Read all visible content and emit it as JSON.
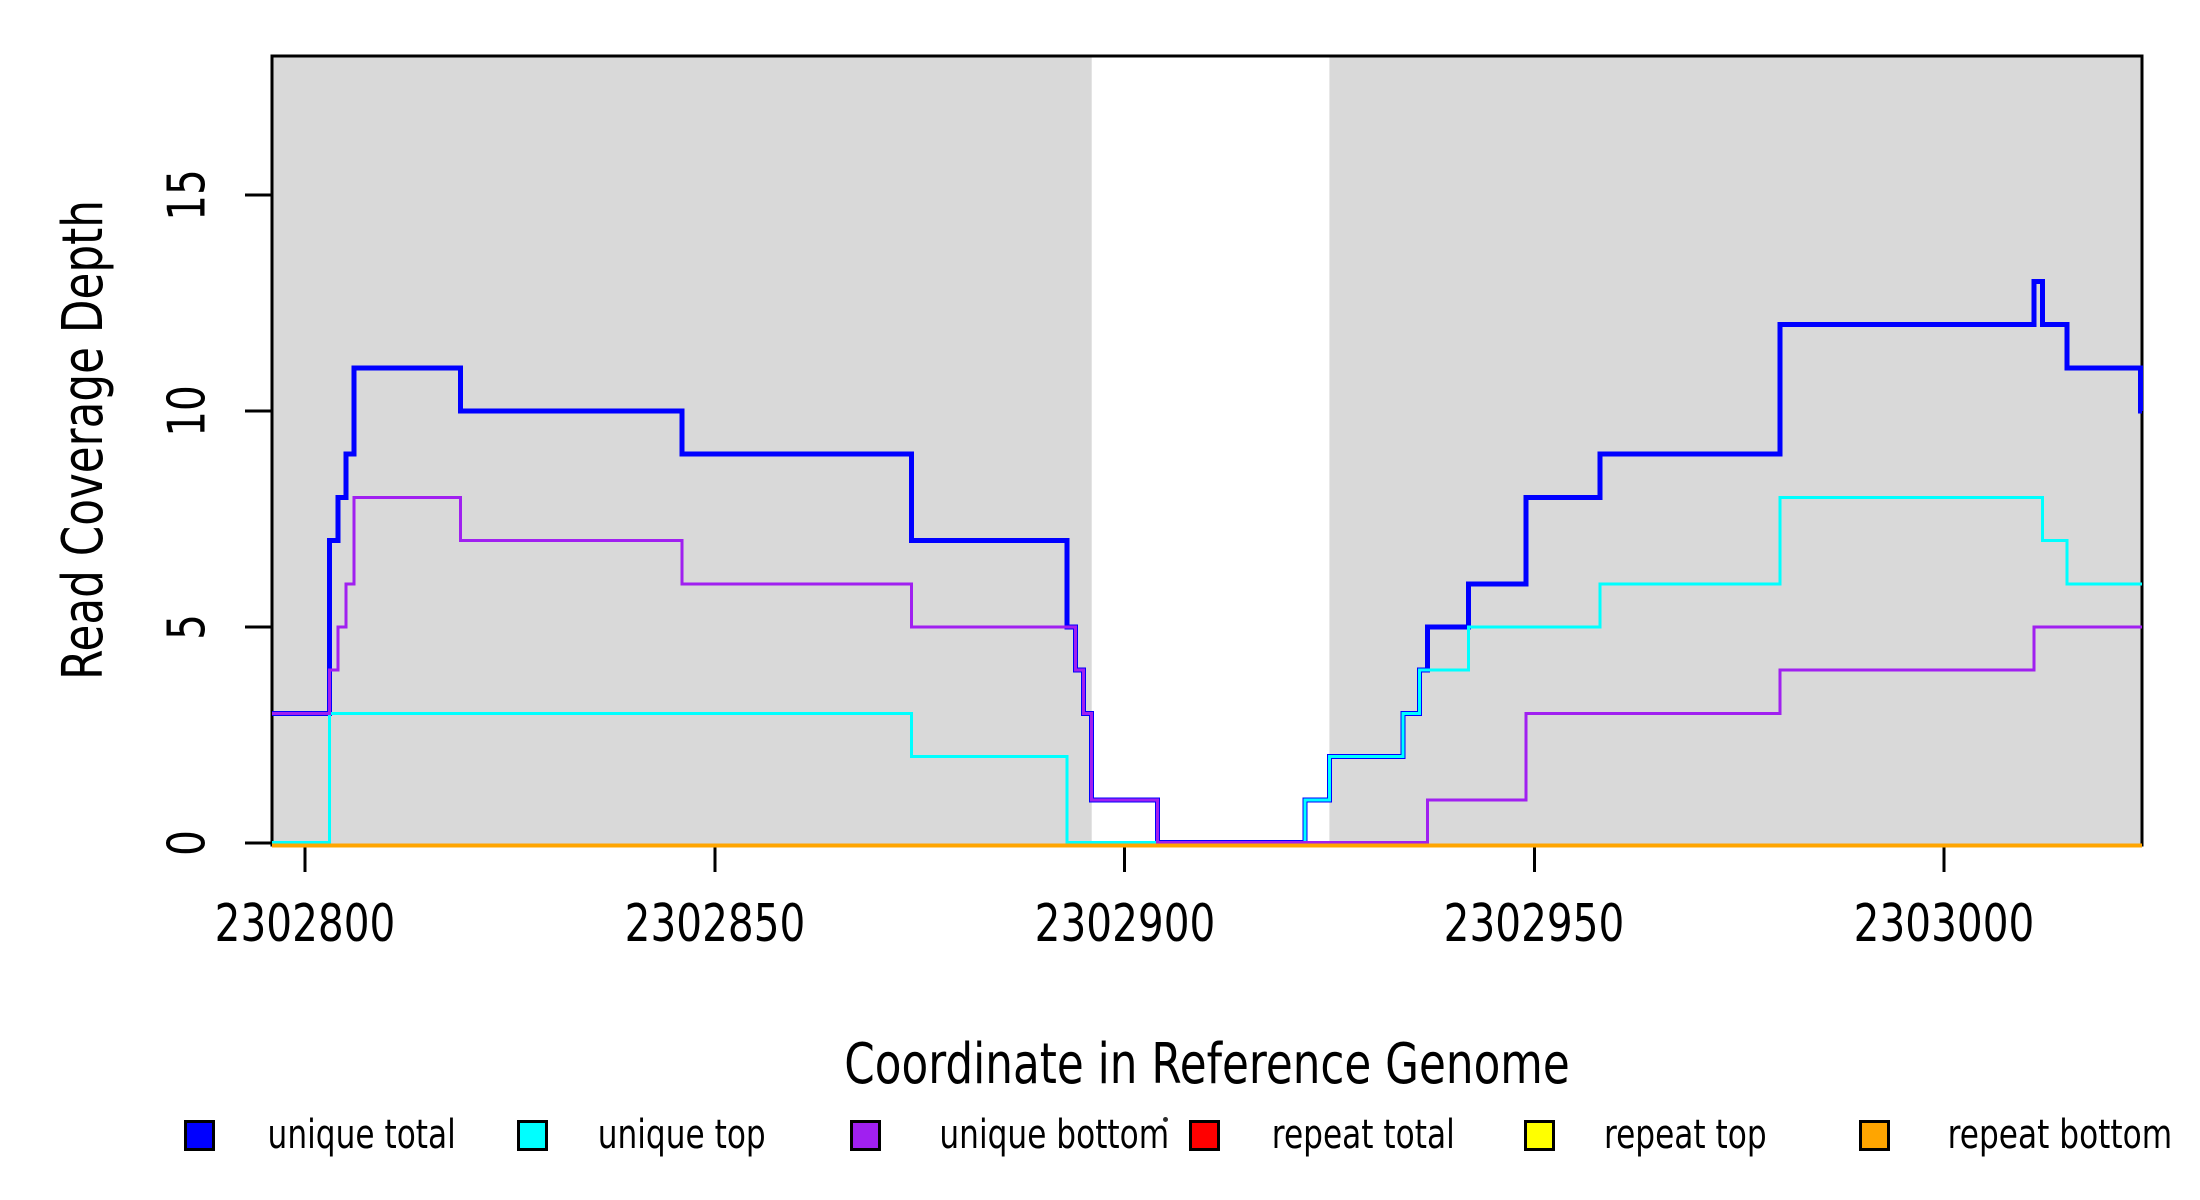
{
  "chart_data": {
    "type": "line",
    "subtype": "step-after",
    "title": "",
    "xlabel": "Coordinate in Reference Genome",
    "ylabel": "Read Coverage Depth",
    "xlim": [
      2302796,
      2303024
    ],
    "ylim": [
      0,
      18.2
    ],
    "grid": false,
    "background_color": "#ffffff",
    "axis_color": "#000000",
    "shading": {
      "color": "#d9d9d9",
      "regions": [
        [
          2302796,
          2302896
        ],
        [
          2302925,
          2303024
        ]
      ]
    },
    "x_ticks": [
      2302800,
      2302850,
      2302900,
      2302950,
      2303000
    ],
    "x_tick_labels": [
      "2302800",
      "2302850",
      "2302900",
      "2302950",
      "2303000"
    ],
    "y_ticks": [
      0,
      5,
      10,
      15
    ],
    "y_tick_labels": [
      "0",
      "5",
      "10",
      "15"
    ],
    "legend_position": "bottom",
    "series": [
      {
        "name": "unique total",
        "color": "#0000ff",
        "lwd": 5,
        "points": [
          [
            2302796,
            3
          ],
          [
            2302803,
            7
          ],
          [
            2302804,
            8
          ],
          [
            2302805,
            9
          ],
          [
            2302806,
            11
          ],
          [
            2302819,
            10
          ],
          [
            2302846,
            9
          ],
          [
            2302874,
            7
          ],
          [
            2302893,
            5
          ],
          [
            2302894,
            4
          ],
          [
            2302895,
            3
          ],
          [
            2302896,
            1
          ],
          [
            2302904,
            0
          ],
          [
            2302922,
            1
          ],
          [
            2302925,
            2
          ],
          [
            2302934,
            3
          ],
          [
            2302936,
            4
          ],
          [
            2302937,
            5
          ],
          [
            2302942,
            6
          ],
          [
            2302949,
            8
          ],
          [
            2302958,
            9
          ],
          [
            2302980,
            12
          ],
          [
            2303011,
            13
          ],
          [
            2303012,
            12
          ],
          [
            2303015,
            11
          ],
          [
            2303024,
            10
          ]
        ]
      },
      {
        "name": "unique top",
        "color": "#00ffff",
        "lwd": 3,
        "points": [
          [
            2302796,
            0
          ],
          [
            2302803,
            3
          ],
          [
            2302874,
            2
          ],
          [
            2302893,
            0
          ],
          [
            2302922,
            1
          ],
          [
            2302925,
            2
          ],
          [
            2302934,
            3
          ],
          [
            2302936,
            4
          ],
          [
            2302942,
            5
          ],
          [
            2302958,
            6
          ],
          [
            2302980,
            8
          ],
          [
            2303012,
            7
          ],
          [
            2303015,
            6
          ]
        ]
      },
      {
        "name": "unique bottom",
        "color": "#a020f0",
        "lwd": 3,
        "points": [
          [
            2302796,
            3
          ],
          [
            2302803,
            4
          ],
          [
            2302804,
            5
          ],
          [
            2302805,
            6
          ],
          [
            2302806,
            8
          ],
          [
            2302819,
            7
          ],
          [
            2302846,
            6
          ],
          [
            2302874,
            5
          ],
          [
            2302894,
            4
          ],
          [
            2302895,
            3
          ],
          [
            2302896,
            1
          ],
          [
            2302904,
            0
          ],
          [
            2302937,
            1
          ],
          [
            2302949,
            3
          ],
          [
            2302980,
            4
          ],
          [
            2303011,
            5
          ]
        ]
      },
      {
        "name": "repeat total",
        "color": "#ff0000",
        "lwd": 3,
        "points": [
          [
            2302796,
            0
          ]
        ]
      },
      {
        "name": "repeat top",
        "color": "#ffff00",
        "lwd": 3,
        "points": [
          [
            2302796,
            0
          ]
        ]
      },
      {
        "name": "repeat bottom",
        "color": "#ffa500",
        "lwd": 4,
        "points": [
          [
            2302796,
            0
          ]
        ]
      }
    ],
    "legend": [
      {
        "label": "unique total",
        "color": "#0000ff"
      },
      {
        "label": "unique top",
        "color": "#00ffff"
      },
      {
        "label": "unique bottom",
        "color": "#a020f0"
      },
      {
        "label": "repeat total",
        "color": "#ff0000"
      },
      {
        "label": "repeat top",
        "color": "#ffff00"
      },
      {
        "label": "repeat bottom",
        "color": "#ffa500"
      }
    ]
  }
}
